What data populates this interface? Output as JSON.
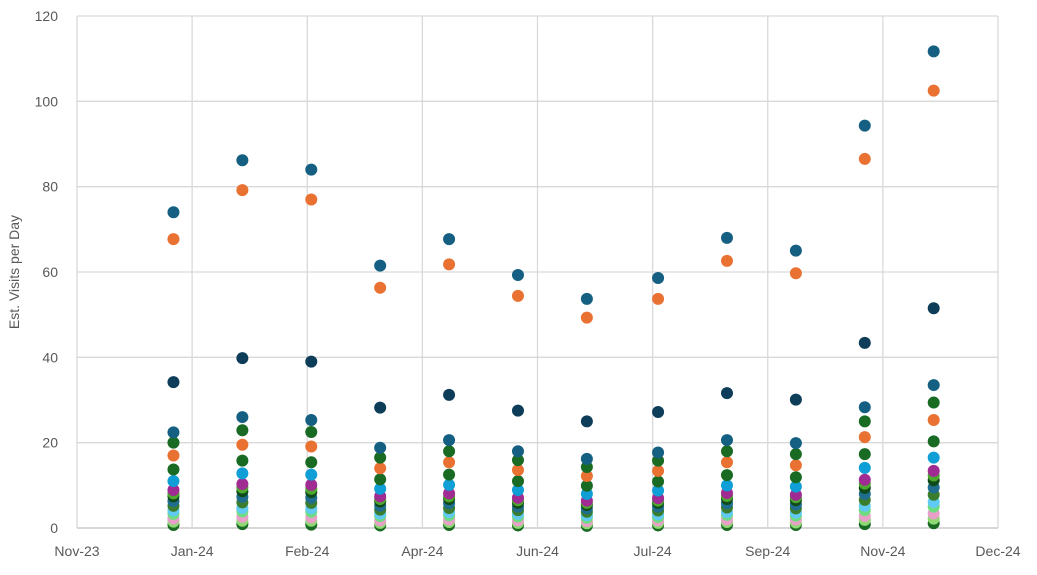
{
  "chart_data": {
    "type": "scatter",
    "title": "",
    "xlabel": "",
    "ylabel": "Est. Visits per Day",
    "ylim": [
      0,
      120
    ],
    "yticks": [
      0,
      20,
      40,
      60,
      80,
      100,
      120
    ],
    "xlim": [
      "2023-11-01",
      "2024-12-06"
    ],
    "xtick_labels": [
      "Nov-23",
      "Jan-24",
      "Feb-24",
      "Apr-24",
      "Jun-24",
      "Jul-24",
      "Sep-24",
      "Nov-24",
      "Dec-24"
    ],
    "grid": true,
    "legend": "none",
    "x": [
      "2023-12-13",
      "2024-01-12",
      "2024-02-11",
      "2024-03-12",
      "2024-04-11",
      "2024-05-11",
      "2024-06-10",
      "2024-07-11",
      "2024-08-10",
      "2024-09-09",
      "2024-10-09",
      "2024-11-08"
    ],
    "series": [
      {
        "name": "S1",
        "color": "#156082",
        "values": [
          74,
          86.2,
          84,
          61.5,
          67.7,
          59.3,
          53.7,
          58.6,
          68,
          65,
          94.3,
          111.7
        ]
      },
      {
        "name": "S2",
        "color": "#E97132",
        "values": [
          67.7,
          79.2,
          77,
          56.3,
          61.8,
          54.4,
          49.3,
          53.7,
          62.6,
          59.7,
          86.5,
          102.5
        ]
      },
      {
        "name": "S3",
        "color": "#0E3D5A",
        "values": [
          34.2,
          39.8,
          39,
          28.2,
          31.2,
          27.5,
          25,
          27.2,
          31.6,
          30.1,
          43.4,
          51.5
        ]
      },
      {
        "name": "S4",
        "color": "#156082",
        "values": [
          22.4,
          26,
          25.3,
          18.8,
          20.6,
          18,
          16.2,
          17.7,
          20.6,
          19.9,
          28.3,
          33.5
        ]
      },
      {
        "name": "S5",
        "color": "#196B24",
        "values": [
          20,
          22.9,
          22.5,
          16.5,
          18,
          15.9,
          14.3,
          15.8,
          18,
          17.3,
          25,
          29.4
        ]
      },
      {
        "name": "S6",
        "color": "#E97132",
        "values": [
          17,
          19.5,
          19.1,
          14,
          15.4,
          13.6,
          12.2,
          13.4,
          15.4,
          14.7,
          21.3,
          25.3
        ]
      },
      {
        "name": "S7",
        "color": "#196B24",
        "values": [
          13.7,
          15.8,
          15.4,
          11.4,
          12.5,
          11,
          9.9,
          10.9,
          12.4,
          11.9,
          17.3,
          20.3
        ]
      },
      {
        "name": "S8",
        "color": "#0F9ED5",
        "values": [
          11,
          12.8,
          12.5,
          9.2,
          10.1,
          8.9,
          8,
          8.8,
          10,
          9.7,
          14.1,
          16.5
        ]
      },
      {
        "name": "S9",
        "color": "#A02B93",
        "values": [
          8.9,
          10.3,
          10.1,
          7.4,
          8.1,
          7.1,
          6.4,
          7.0,
          8.2,
          7.8,
          11.3,
          13.4
        ]
      },
      {
        "name": "S10",
        "color": "#4EA72E",
        "values": [
          8.1,
          9.5,
          9.2,
          6.8,
          7.4,
          6.5,
          5.9,
          6.4,
          7.5,
          7.2,
          10.4,
          12.3
        ]
      },
      {
        "name": "S11",
        "color": "#0E4A1A",
        "values": [
          7.4,
          8.6,
          8.4,
          6.2,
          6.8,
          5.9,
          5.4,
          5.9,
          6.8,
          6.5,
          9.4,
          11.2
        ]
      },
      {
        "name": "S12",
        "color": "#1F6E8F",
        "values": [
          6.3,
          7.3,
          7.1,
          5.2,
          5.8,
          5.0,
          4.6,
          5.0,
          5.8,
          5.5,
          8.0,
          9.5
        ]
      },
      {
        "name": "S13",
        "color": "#3B7D2E",
        "values": [
          5.2,
          6.0,
          5.9,
          4.3,
          4.7,
          4.2,
          3.8,
          4.1,
          4.8,
          4.6,
          6.6,
          7.8
        ]
      },
      {
        "name": "S14",
        "color": "#60CAF3",
        "values": [
          4.1,
          4.7,
          4.6,
          3.4,
          3.7,
          3.3,
          3.0,
          3.2,
          3.7,
          3.6,
          5.2,
          6.1
        ]
      },
      {
        "name": "S15",
        "color": "#6EDC80",
        "values": [
          3.3,
          3.9,
          3.8,
          2.8,
          3.0,
          2.7,
          2.4,
          2.6,
          3.1,
          2.9,
          4.2,
          5.0
        ]
      },
      {
        "name": "S16",
        "color": "#E8A0C8",
        "values": [
          2.2,
          2.6,
          2.5,
          1.8,
          2.0,
          1.8,
          1.6,
          1.8,
          2.0,
          2.0,
          2.8,
          3.4
        ]
      },
      {
        "name": "S17",
        "color": "#8ED973",
        "values": [
          1.5,
          1.7,
          1.7,
          1.2,
          1.4,
          1.2,
          1.1,
          1.2,
          1.4,
          1.3,
          1.9,
          2.2
        ]
      },
      {
        "name": "S18",
        "color": "#196B24",
        "values": [
          0.7,
          0.9,
          0.8,
          0.6,
          0.7,
          0.6,
          0.5,
          0.6,
          0.7,
          0.7,
          0.9,
          1.1
        ]
      }
    ]
  }
}
